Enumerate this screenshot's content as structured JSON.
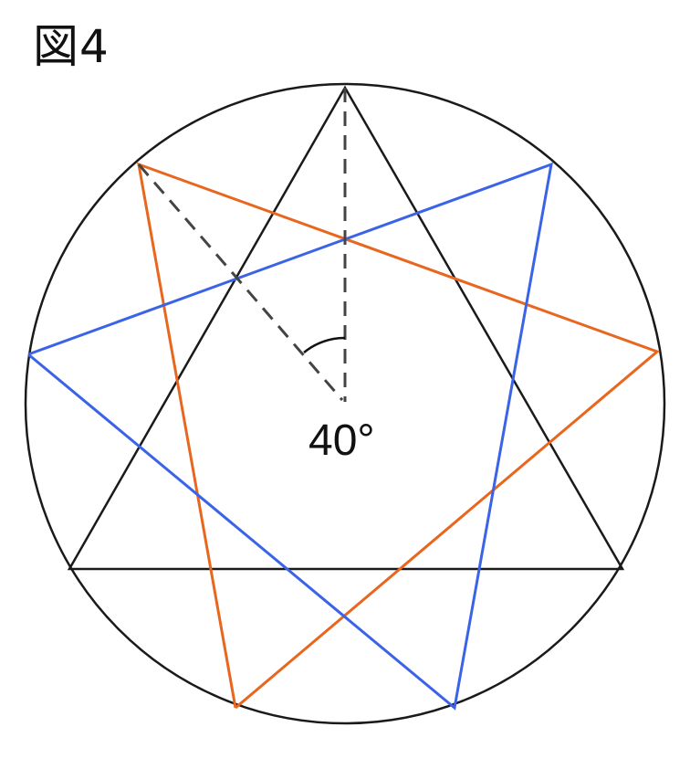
{
  "figure": {
    "label": "図4",
    "angle_label": "40°"
  },
  "colors": {
    "circle": "#1a1a1a",
    "triangle": "#1a1a1a",
    "orange_star": "#e8661e",
    "blue_star": "#3b63e8",
    "dashed": "#444444",
    "background": "#ffffff"
  },
  "shapes": {
    "circle": "outer-circle",
    "triangle": "inscribed-equilateral-triangle",
    "orange_path": "orange-star-segments",
    "blue_path": "blue-star-segments",
    "dashed_radii": "two-dashed-radii",
    "angle_arc": "angle-arc-between-radii"
  }
}
